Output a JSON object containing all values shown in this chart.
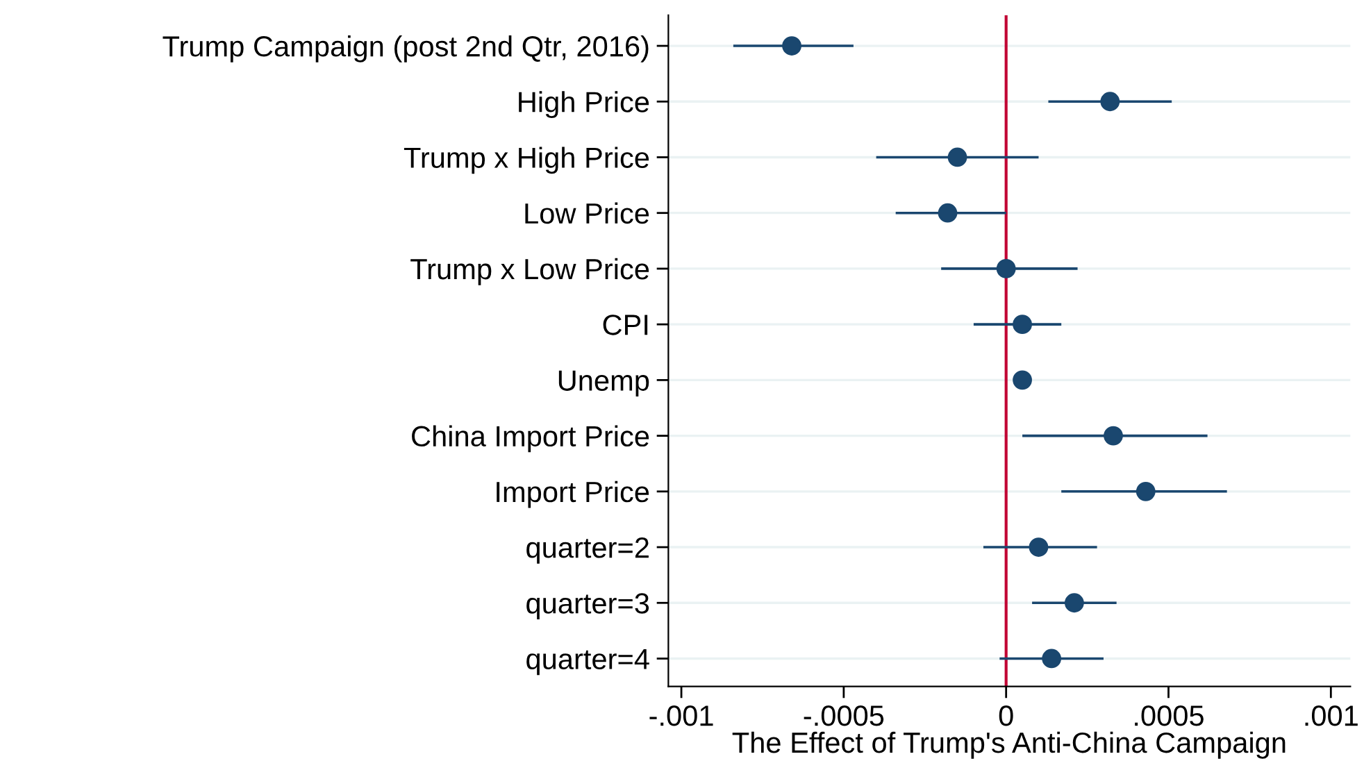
{
  "chart_data": {
    "type": "scatter",
    "orientation": "horizontal",
    "xlabel": "The Effect of Trump's Anti-China Campaign",
    "categories": [
      "Trump Campaign (post 2nd Qtr, 2016)",
      "High Price",
      "Trump x High Price",
      "Low Price",
      "Trump x Low Price",
      "CPI",
      "Unemp",
      "China Import Price",
      "Import Price",
      "quarter=2",
      "quarter=3",
      "quarter=4"
    ],
    "series": [
      {
        "color": "#1a476f",
        "values": [
          -0.00066,
          0.00032,
          -0.00015,
          -0.00018,
          0,
          5e-05,
          5e-05,
          0.00033,
          0.00043,
          0.0001,
          0.00021,
          0.00014
        ],
        "errors": [
          [
            -0.00084,
            -0.00047
          ],
          [
            0.00013,
            0.00051
          ],
          [
            -0.0004,
            0.0001
          ],
          [
            -0.00034,
            0
          ],
          [
            -0.0002,
            0.00022
          ],
          [
            -0.0001,
            0.00017
          ],
          [
            3e-05,
            7e-05
          ],
          [
            5e-05,
            0.00062
          ],
          [
            0.00017,
            0.00068
          ],
          [
            -7e-05,
            0.00028
          ],
          [
            8e-05,
            0.00034
          ],
          [
            -2e-05,
            0.0003
          ]
        ]
      }
    ],
    "xlim": [
      -0.00104,
      0.00106
    ],
    "xticks": [
      {
        "value": -0.001,
        "label": "-.001"
      },
      {
        "value": -0.0005,
        "label": "-.0005"
      },
      0,
      {
        "value": 0.0005,
        "label": ".0005"
      },
      {
        "value": 0.001,
        "label": ".001"
      }
    ],
    "ref_lines": [
      {
        "axis": "x",
        "value": 0,
        "color": "#c10534"
      }
    ],
    "grid": "y",
    "marker": "circle"
  }
}
